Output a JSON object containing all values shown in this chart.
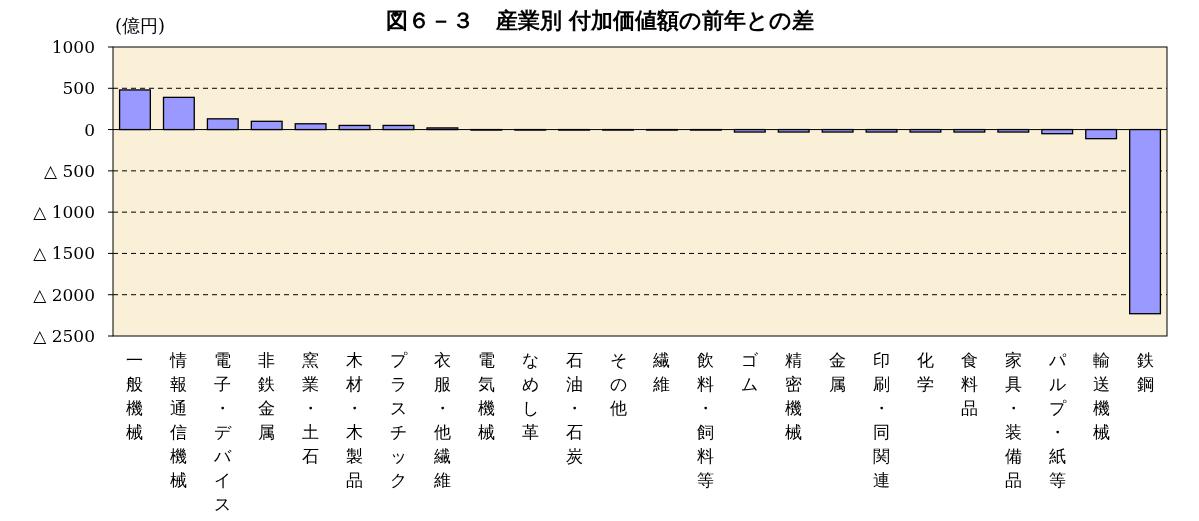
{
  "chart_data": {
    "type": "bar",
    "title": "図６－３　産業別 付加価値額の前年との差",
    "ylabel": "(億円)",
    "categories": [
      "一般機械",
      "情報通信機械",
      "電子・デバイス",
      "非鉄金属",
      "窯業・土石",
      "木材・木製品",
      "プラスチック",
      "衣服・他繊維",
      "電気機械",
      "なめし革",
      "石油・石炭",
      "その他",
      "繊維",
      "飲料・飼料等",
      "ゴム",
      "精密機械",
      "金属",
      "印刷・同関連",
      "化学",
      "食料品",
      "家具・装備品",
      "パルプ・紙等",
      "輸送機械",
      "鉄鋼"
    ],
    "values": [
      480,
      390,
      130,
      100,
      70,
      50,
      50,
      20,
      0,
      0,
      0,
      0,
      0,
      0,
      -30,
      -30,
      -30,
      -30,
      -30,
      -30,
      -30,
      -50,
      -110,
      -2230
    ],
    "color": "#9999ff",
    "ylim": [
      -2500,
      1000
    ],
    "yticks": [
      {
        "value": 1000,
        "label": "1000"
      },
      {
        "value": 500,
        "label": "500"
      },
      {
        "value": 0,
        "label": "0"
      },
      {
        "value": -500,
        "label": "△ 500"
      },
      {
        "value": -1000,
        "label": "△ 1000"
      },
      {
        "value": -1500,
        "label": "△ 1500"
      },
      {
        "value": -2000,
        "label": "△ 2000"
      },
      {
        "value": -2500,
        "label": "△ 2500"
      }
    ],
    "grid": "y",
    "line_style": "dashed"
  }
}
